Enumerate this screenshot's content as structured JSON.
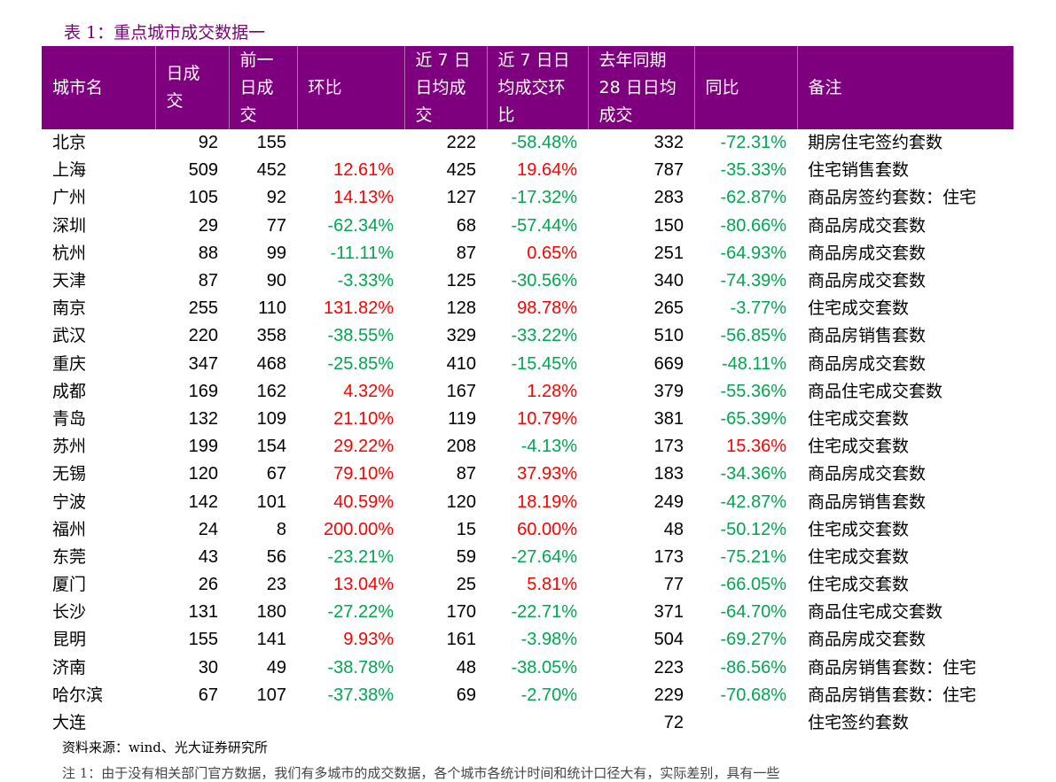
{
  "caption": "表 1：重点城市成交数据一",
  "headers": [
    [
      "城市名"
    ],
    [
      "日成",
      "交"
    ],
    [
      "前一",
      "日成",
      "交"
    ],
    [
      "环比"
    ],
    [
      "近 7 日",
      "日均成",
      "交"
    ],
    [
      "近 7 日日",
      "均成交环",
      "比"
    ],
    [
      "去年同期",
      "28 日日均",
      "成交"
    ],
    [
      "同比"
    ],
    [
      "备注"
    ]
  ],
  "rows": [
    {
      "city": "北京",
      "day": "92",
      "prev": "155",
      "mom": "",
      "avg7": "222",
      "avg7_mom": "-58.48%",
      "ly28": "332",
      "yoy": "-72.31%",
      "note": "期房住宅签约套数"
    },
    {
      "city": "上海",
      "day": "509",
      "prev": "452",
      "mom": "12.61%",
      "avg7": "425",
      "avg7_mom": "19.64%",
      "ly28": "787",
      "yoy": "-35.33%",
      "note": "住宅销售套数"
    },
    {
      "city": "广州",
      "day": "105",
      "prev": "92",
      "mom": "14.13%",
      "avg7": "127",
      "avg7_mom": "-17.32%",
      "ly28": "283",
      "yoy": "-62.87%",
      "note": "商品房签约套数：住宅"
    },
    {
      "city": "深圳",
      "day": "29",
      "prev": "77",
      "mom": "-62.34%",
      "avg7": "68",
      "avg7_mom": "-57.44%",
      "ly28": "150",
      "yoy": "-80.66%",
      "note": "商品房成交套数"
    },
    {
      "city": "杭州",
      "day": "88",
      "prev": "99",
      "mom": "-11.11%",
      "avg7": "87",
      "avg7_mom": "0.65%",
      "ly28": "251",
      "yoy": "-64.93%",
      "note": "商品房成交套数"
    },
    {
      "city": "天津",
      "day": "87",
      "prev": "90",
      "mom": "-3.33%",
      "avg7": "125",
      "avg7_mom": "-30.56%",
      "ly28": "340",
      "yoy": "-74.39%",
      "note": "商品房成交套数"
    },
    {
      "city": "南京",
      "day": "255",
      "prev": "110",
      "mom": "131.82%",
      "avg7": "128",
      "avg7_mom": "98.78%",
      "ly28": "265",
      "yoy": "-3.77%",
      "note": "住宅成交套数"
    },
    {
      "city": "武汉",
      "day": "220",
      "prev": "358",
      "mom": "-38.55%",
      "avg7": "329",
      "avg7_mom": "-33.22%",
      "ly28": "510",
      "yoy": "-56.85%",
      "note": "商品房销售套数"
    },
    {
      "city": "重庆",
      "day": "347",
      "prev": "468",
      "mom": "-25.85%",
      "avg7": "410",
      "avg7_mom": "-15.45%",
      "ly28": "669",
      "yoy": "-48.11%",
      "note": "商品房成交套数"
    },
    {
      "city": "成都",
      "day": "169",
      "prev": "162",
      "mom": "4.32%",
      "avg7": "167",
      "avg7_mom": "1.28%",
      "ly28": "379",
      "yoy": "-55.36%",
      "note": "商品住宅成交套数"
    },
    {
      "city": "青岛",
      "day": "132",
      "prev": "109",
      "mom": "21.10%",
      "avg7": "119",
      "avg7_mom": "10.79%",
      "ly28": "381",
      "yoy": "-65.39%",
      "note": "住宅成交套数"
    },
    {
      "city": "苏州",
      "day": "199",
      "prev": "154",
      "mom": "29.22%",
      "avg7": "208",
      "avg7_mom": "-4.13%",
      "ly28": "173",
      "yoy": "15.36%",
      "note": "住宅成交套数"
    },
    {
      "city": "无锡",
      "day": "120",
      "prev": "67",
      "mom": "79.10%",
      "avg7": "87",
      "avg7_mom": "37.93%",
      "ly28": "183",
      "yoy": "-34.36%",
      "note": "商品房成交套数"
    },
    {
      "city": "宁波",
      "day": "142",
      "prev": "101",
      "mom": "40.59%",
      "avg7": "120",
      "avg7_mom": "18.19%",
      "ly28": "249",
      "yoy": "-42.87%",
      "note": "商品房销售套数"
    },
    {
      "city": "福州",
      "day": "24",
      "prev": "8",
      "mom": "200.00%",
      "avg7": "15",
      "avg7_mom": "60.00%",
      "ly28": "48",
      "yoy": "-50.12%",
      "note": "住宅成交套数"
    },
    {
      "city": "东莞",
      "day": "43",
      "prev": "56",
      "mom": "-23.21%",
      "avg7": "59",
      "avg7_mom": "-27.64%",
      "ly28": "173",
      "yoy": "-75.21%",
      "note": "住宅成交套数"
    },
    {
      "city": "厦门",
      "day": "26",
      "prev": "23",
      "mom": "13.04%",
      "avg7": "25",
      "avg7_mom": "5.81%",
      "ly28": "77",
      "yoy": "-66.05%",
      "note": "住宅成交套数"
    },
    {
      "city": "长沙",
      "day": "131",
      "prev": "180",
      "mom": "-27.22%",
      "avg7": "170",
      "avg7_mom": "-22.71%",
      "ly28": "371",
      "yoy": "-64.70%",
      "note": "商品住宅成交套数"
    },
    {
      "city": "昆明",
      "day": "155",
      "prev": "141",
      "mom": "9.93%",
      "avg7": "161",
      "avg7_mom": "-3.98%",
      "ly28": "504",
      "yoy": "-69.27%",
      "note": "商品房成交套数"
    },
    {
      "city": "济南",
      "day": "30",
      "prev": "49",
      "mom": "-38.78%",
      "avg7": "48",
      "avg7_mom": "-38.05%",
      "ly28": "223",
      "yoy": "-86.56%",
      "note": "商品房销售套数：住宅"
    },
    {
      "city": "哈尔滨",
      "day": "67",
      "prev": "107",
      "mom": "-37.38%",
      "avg7": "69",
      "avg7_mom": "-2.70%",
      "ly28": "229",
      "yoy": "-70.68%",
      "note": "商品房销售套数：住宅"
    },
    {
      "city": "大连",
      "day": "",
      "prev": "",
      "mom": "",
      "avg7": "",
      "avg7_mom": "",
      "ly28": "72",
      "yoy": "",
      "note": "住宅签约套数"
    }
  ],
  "source": "资料来源：wind、光大证券研究所",
  "footnote": "注 1：由于没有相关部门官方数据，我们有多城市的成交数据，各个城市各统计时间和统计口径大有，实际差别，具有一些",
  "colors": {
    "header_bg": "#7f007f",
    "positive": "#ff0000",
    "negative": "#00a651",
    "caption": "#7a007a"
  }
}
